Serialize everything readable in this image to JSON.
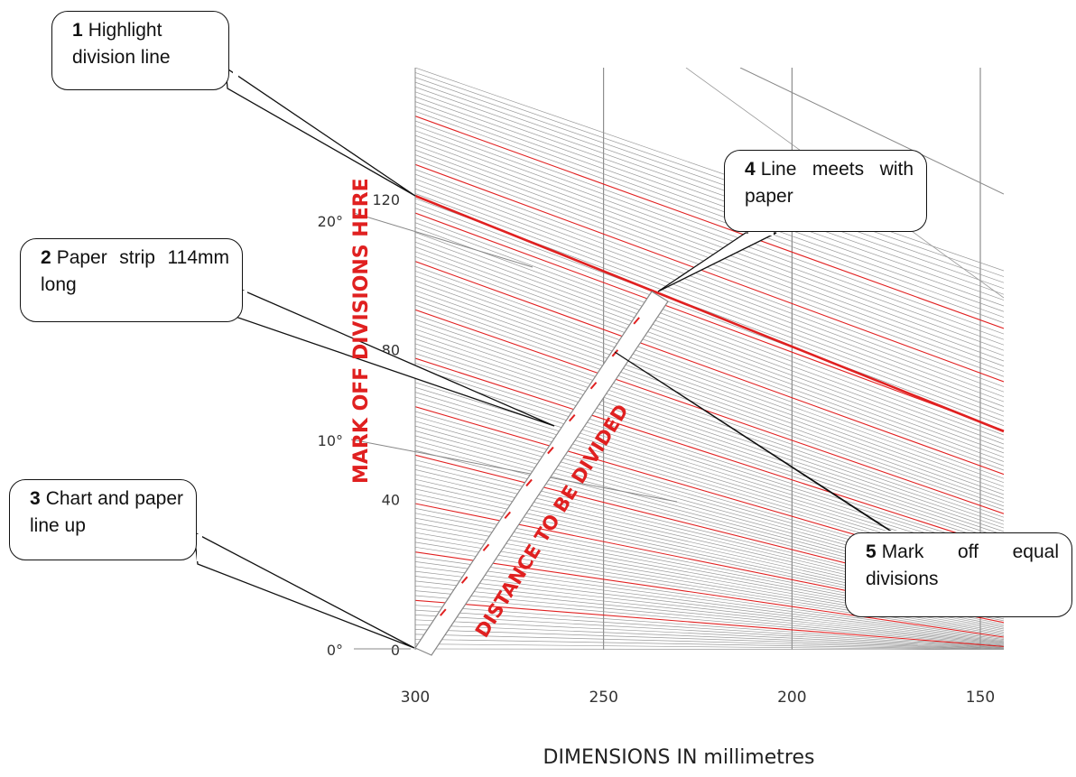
{
  "chart_data": {
    "type": "diagram",
    "title": "",
    "xlabel": "DIMENSIONS IN millimetres",
    "x_ticks": [
      "300",
      "250",
      "200",
      "150"
    ],
    "x_tick_values": [
      300,
      250,
      200,
      150
    ],
    "y_ticks": [
      "120",
      "80",
      "40",
      "0"
    ],
    "y_tick_values": [
      120,
      80,
      40,
      0
    ],
    "angle_ticks": [
      "20°",
      "10°",
      "0°"
    ],
    "angle_tick_values": [
      20,
      10,
      0
    ],
    "ylabel": "MARK OFF DIVISIONS HERE",
    "strip_label": "DISTANCE TO BE DIVIDED",
    "highlight_color": "#e02020",
    "grid_color": "#999999",
    "grid": true
  },
  "callouts": [
    {
      "number": "1",
      "text": "Highlight division line"
    },
    {
      "number": "2",
      "text": "Paper strip 114mm long"
    },
    {
      "number": "3",
      "text": "Chart and paper line up"
    },
    {
      "number": "4",
      "text": "Line meets with paper"
    },
    {
      "number": "5",
      "text": "Mark off equal divisions"
    }
  ]
}
